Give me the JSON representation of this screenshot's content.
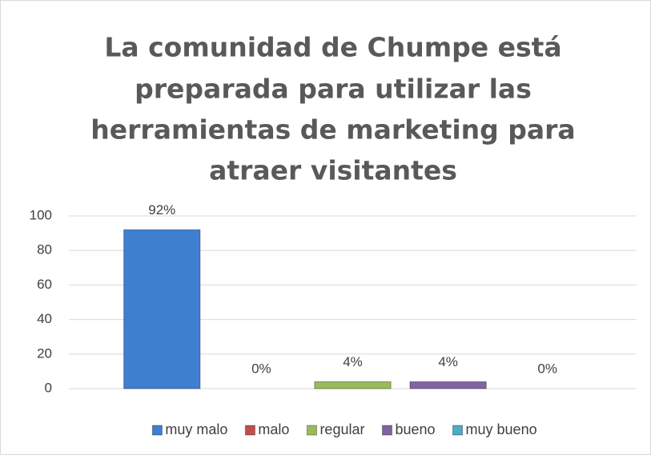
{
  "chart_data": {
    "type": "bar",
    "title": [
      "La comunidad de Chumpe está",
      "preparada para utilizar las",
      "herramientas de marketing para",
      "atraer visitantes"
    ],
    "categories": [
      null
    ],
    "series": [
      {
        "name": "muy malo",
        "color": "#3f7fd0",
        "values": [
          92
        ],
        "value_labels": [
          "92%"
        ]
      },
      {
        "name": "malo",
        "color": "#c0504d",
        "values": [
          0
        ],
        "value_labels": [
          "0%"
        ]
      },
      {
        "name": "regular",
        "color": "#9bbb59",
        "values": [
          4
        ],
        "value_labels": [
          "4%"
        ]
      },
      {
        "name": "bueno",
        "color": "#8064a2",
        "values": [
          4
        ],
        "value_labels": [
          "4%"
        ]
      },
      {
        "name": "muy bueno",
        "color": "#4bacc6",
        "values": [
          0
        ],
        "value_labels": [
          "0%"
        ]
      }
    ],
    "ylim": [
      0,
      100
    ],
    "yticks": [
      0,
      20,
      40,
      60,
      80,
      100
    ],
    "grid": true,
    "legend": "bottom"
  }
}
